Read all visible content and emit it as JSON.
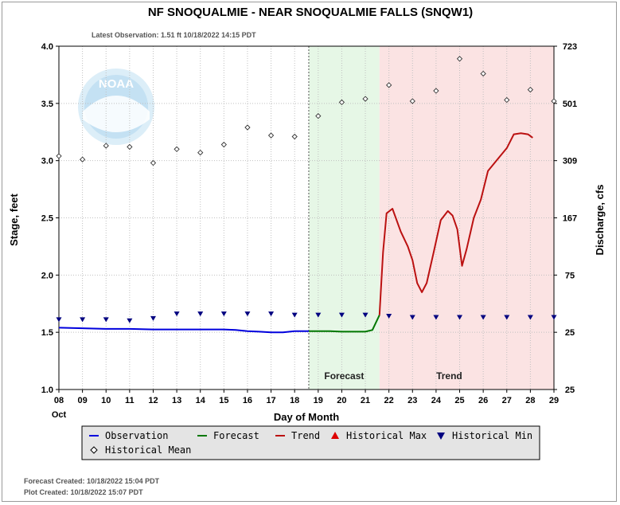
{
  "title": "NF SNOQUALMIE - NEAR SNOQUALMIE FALLS  (SNQW1)",
  "latest_observation": "Latest Observation: 1.51 ft 10/18/2022 14:15 PDT",
  "footer": {
    "forecast_created": "Forecast Created: 10/18/2022 15:04 PDT",
    "plot_created": "Plot Created: 10/18/2022 15:07 PDT"
  },
  "logo_text": "NOAA",
  "colors": {
    "observation": "#0000dd",
    "forecast": "#007700",
    "trend": "#bb1111",
    "historical_max": "#dd0000",
    "historical_min": "#000080",
    "forecast_bg": "#e6f7e6",
    "trend_bg": "#fbe3e3"
  },
  "chart_data": {
    "type": "line",
    "xlabel": "Day of Month",
    "ylabel": "Stage, feet",
    "y2label": "Discharge, cfs",
    "xlim": [
      8,
      29
    ],
    "ylim": [
      1.0,
      4.0
    ],
    "x_ticks": [
      "08",
      "09",
      "10",
      "11",
      "12",
      "13",
      "14",
      "15",
      "16",
      "17",
      "18",
      "19",
      "20",
      "21",
      "22",
      "23",
      "24",
      "25",
      "26",
      "27",
      "28",
      "29"
    ],
    "x_month_label": "Oct",
    "y_ticks": [
      "1.0",
      "1.5",
      "2.0",
      "2.5",
      "3.0",
      "3.5",
      "4.0"
    ],
    "y2_ticks": [
      {
        "stage": 1.0,
        "label": "25"
      },
      {
        "stage": 1.5,
        "label": "25"
      },
      {
        "stage": 2.0,
        "label": "75"
      },
      {
        "stage": 2.5,
        "label": "167"
      },
      {
        "stage": 3.0,
        "label": "309"
      },
      {
        "stage": 3.5,
        "label": "501"
      },
      {
        "stage": 4.0,
        "label": "723"
      }
    ],
    "now_x": 18.6,
    "regions": [
      {
        "label": "Forecast",
        "x0": 18.6,
        "x1": 21.6
      },
      {
        "label": "Trend",
        "x0": 21.6,
        "x1": 29
      }
    ],
    "series": [
      {
        "name": "Observation",
        "x": [
          8,
          9,
          10,
          11,
          12,
          13,
          14,
          15,
          15.5,
          16,
          16.5,
          17,
          17.5,
          18,
          18.6
        ],
        "y": [
          1.54,
          1.535,
          1.53,
          1.53,
          1.525,
          1.525,
          1.525,
          1.525,
          1.52,
          1.51,
          1.505,
          1.5,
          1.5,
          1.51,
          1.51
        ]
      },
      {
        "name": "Forecast",
        "x": [
          18.6,
          19,
          19.5,
          20,
          20.5,
          21,
          21.3,
          21.6
        ],
        "y": [
          1.51,
          1.51,
          1.51,
          1.505,
          1.505,
          1.505,
          1.52,
          1.65
        ]
      },
      {
        "name": "Trend",
        "x": [
          21.6,
          21.75,
          21.9,
          22.15,
          22.5,
          22.8,
          23.0,
          23.2,
          23.4,
          23.6,
          23.9,
          24.2,
          24.5,
          24.7,
          24.9,
          25.1,
          25.3,
          25.6,
          25.9,
          26.2,
          26.6,
          27.0,
          27.3,
          27.6,
          27.9,
          28.1
        ],
        "y": [
          1.65,
          2.2,
          2.54,
          2.58,
          2.38,
          2.25,
          2.13,
          1.93,
          1.85,
          1.93,
          2.2,
          2.48,
          2.56,
          2.52,
          2.4,
          2.08,
          2.23,
          2.5,
          2.66,
          2.91,
          3.01,
          3.11,
          3.23,
          3.24,
          3.23,
          3.2
        ]
      }
    ],
    "historical_mean": {
      "x": [
        8,
        9,
        10,
        11,
        12,
        13,
        14,
        15,
        16,
        17,
        18,
        19,
        20,
        21,
        22,
        23,
        24,
        25,
        26,
        27,
        28,
        29
      ],
      "y": [
        3.04,
        3.01,
        3.13,
        3.12,
        2.98,
        3.1,
        3.07,
        3.14,
        3.29,
        3.22,
        3.21,
        3.39,
        3.51,
        3.54,
        3.66,
        3.52,
        3.61,
        3.89,
        3.76,
        3.53,
        3.62,
        3.52
      ]
    },
    "historical_min": {
      "x": [
        8,
        9,
        10,
        11,
        12,
        13,
        14,
        15,
        16,
        17,
        18,
        19,
        20,
        21,
        22,
        23,
        24,
        25,
        26,
        27,
        28,
        29
      ],
      "y": [
        1.61,
        1.61,
        1.61,
        1.6,
        1.62,
        1.66,
        1.66,
        1.66,
        1.66,
        1.66,
        1.65,
        1.65,
        1.65,
        1.65,
        1.64,
        1.63,
        1.63,
        1.63,
        1.63,
        1.63,
        1.63,
        1.63
      ]
    },
    "legend": [
      {
        "label": "Observation",
        "kind": "line",
        "color": "#0000dd"
      },
      {
        "label": "Forecast",
        "kind": "line",
        "color": "#007700"
      },
      {
        "label": "Trend",
        "kind": "line",
        "color": "#bb1111"
      },
      {
        "label": "Historical Max",
        "kind": "triangle-up",
        "color": "#dd0000"
      },
      {
        "label": "Historical Min",
        "kind": "triangle-down",
        "color": "#000080"
      },
      {
        "label": "Historical Mean",
        "kind": "diamond",
        "color": "#000000"
      }
    ]
  }
}
